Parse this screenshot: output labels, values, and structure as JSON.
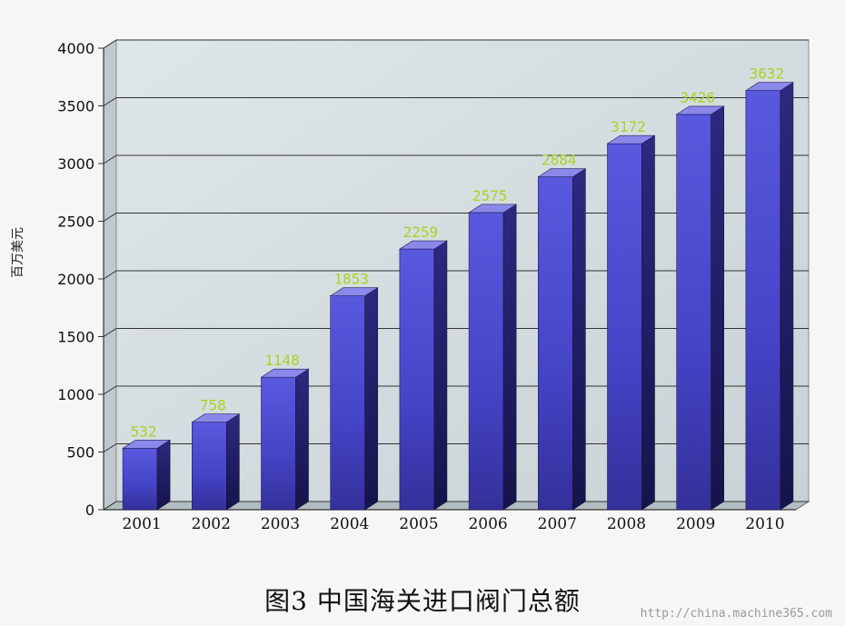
{
  "chart_data": {
    "type": "bar",
    "categories": [
      "2001",
      "2002",
      "2003",
      "2004",
      "2005",
      "2006",
      "2007",
      "2008",
      "2009",
      "2010"
    ],
    "values": [
      532,
      758,
      1148,
      1853,
      2259,
      2575,
      2884,
      3172,
      3426,
      3632
    ],
    "title": "图3   中国海关进口阀门总额",
    "ylabel": "百万美元",
    "xlabel": "",
    "ylim": [
      0,
      4000
    ],
    "yticks": [
      0,
      500,
      1000,
      1500,
      2000,
      2500,
      3000,
      3500,
      4000
    ],
    "grid": true,
    "legend": "none",
    "colors": {
      "bar_front": "#4a48cc",
      "bar_side": "#23206e",
      "bar_top": "#8a88e8",
      "label": "#a8d321",
      "wall": "#cfd8dc"
    }
  },
  "watermark": "http://china.machine365.com"
}
